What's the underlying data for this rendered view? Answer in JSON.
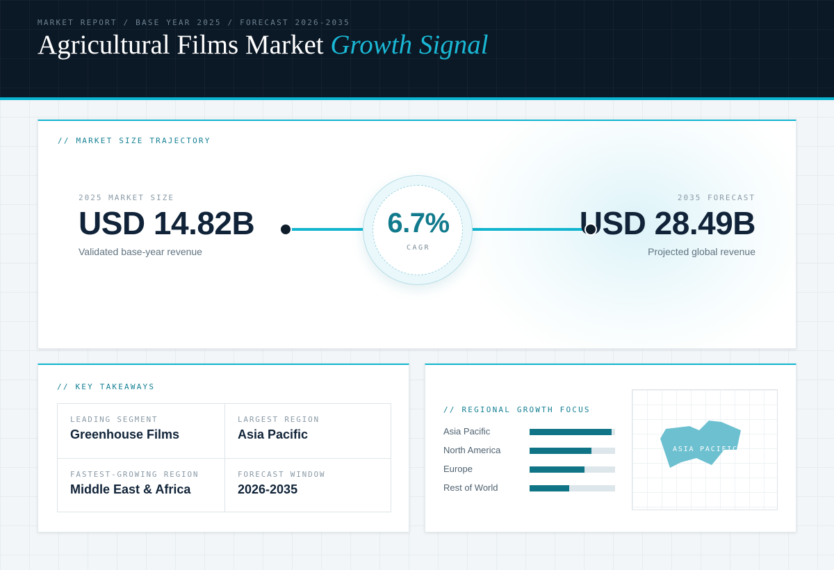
{
  "header": {
    "eyebrow": "MARKET REPORT / BASE YEAR 2025 / FORECAST 2026-2035",
    "title_main": "Agricultural Films Market",
    "title_accent": "Growth Signal"
  },
  "trajectory": {
    "section_label": "// MARKET SIZE TRAJECTORY",
    "base": {
      "label": "2025 MARKET SIZE",
      "value": "USD 14.82B",
      "caption": "Validated base-year revenue"
    },
    "cagr": {
      "value": "6.7%",
      "label": "CAGR"
    },
    "forecast": {
      "label": "2035 FORECAST",
      "value": "USD 28.49B",
      "caption": "Projected global revenue"
    }
  },
  "takeaways": {
    "section_label": "// KEY TAKEAWAYS",
    "items": [
      {
        "label": "LEADING SEGMENT",
        "value": "Greenhouse Films"
      },
      {
        "label": "LARGEST REGION",
        "value": "Asia Pacific"
      },
      {
        "label": "FASTEST-GROWING REGION",
        "value": "Middle East & Africa"
      },
      {
        "label": "FORECAST WINDOW",
        "value": "2026-2035"
      }
    ]
  },
  "regional": {
    "section_label": "// REGIONAL GROWTH FOCUS",
    "regions": [
      {
        "name": "Asia Pacific",
        "level": 0.96
      },
      {
        "name": "North America",
        "level": 0.72
      },
      {
        "name": "Europe",
        "level": 0.64
      },
      {
        "name": "Rest of World",
        "level": 0.46
      }
    ],
    "map_label": "ASIA PACIFIC"
  },
  "colors": {
    "accent": "#12b5cf",
    "accent_dark": "#0f7486",
    "header_bg": "#0b1825",
    "text_dark": "#102338"
  }
}
